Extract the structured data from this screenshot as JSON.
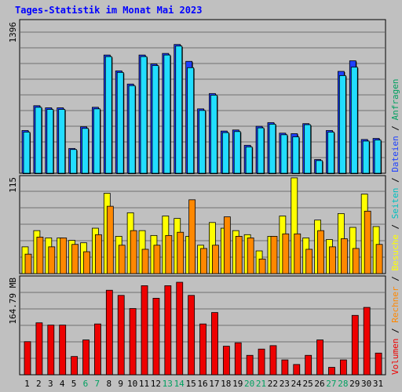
{
  "title": "Tages-Statistik im Monat Mai 2023",
  "colors": {
    "background": "#c0c0c0",
    "title": "#0000ff",
    "grid": "#707070",
    "anfragen": "#1e40ff",
    "dateien": "#22ddff",
    "seiten": "#00c0c0",
    "besuche": "#ffff00",
    "rechner": "#ff8800",
    "volumen": "#ee0000",
    "weekend": "#00a060",
    "label_dark": "#000000"
  },
  "right_legend": [
    "Volumen",
    "Rechner",
    "Besuche",
    "Seiten",
    "Dateien",
    "Anfragen"
  ],
  "right_legend_sep": "/",
  "chart_data": [
    {
      "type": "bar",
      "title": "Tages-Statistik im Monat Mai 2023",
      "ylabel": "1396",
      "ylim": [
        0,
        1396
      ],
      "grid": true,
      "categories": [
        "1",
        "2",
        "3",
        "4",
        "5",
        "6",
        "7",
        "8",
        "9",
        "10",
        "11",
        "12",
        "13",
        "14",
        "15",
        "16",
        "17",
        "18",
        "19",
        "20",
        "21",
        "22",
        "23",
        "24",
        "25",
        "26",
        "27",
        "28",
        "29",
        "30",
        "31"
      ],
      "weekend_days": [
        "6",
        "7",
        "13",
        "14",
        "20",
        "21",
        "27",
        "28"
      ],
      "series": [
        {
          "name": "Anfragen",
          "values": [
            405,
            640,
            620,
            620,
            235,
            440,
            625,
            1120,
            970,
            845,
            1120,
            1035,
            1135,
            1220,
            1060,
            610,
            755,
            400,
            410,
            265,
            445,
            480,
            380,
            375,
            470,
            130,
            405,
            965,
            1065,
            320,
            330
          ]
        },
        {
          "name": "Dateien",
          "values": [
            390,
            625,
            605,
            605,
            225,
            425,
            610,
            1105,
            955,
            830,
            1105,
            1020,
            1120,
            1205,
            1000,
            595,
            740,
            385,
            395,
            250,
            430,
            465,
            365,
            345,
            460,
            120,
            390,
            925,
            1005,
            305,
            315
          ]
        }
      ]
    },
    {
      "type": "bar",
      "ylabel": "115",
      "ylim": [
        0,
        115
      ],
      "grid": true,
      "series": [
        {
          "name": "Besuche",
          "values": [
            33,
            53,
            44,
            44,
            41,
            38,
            56,
            99,
            46,
            75,
            53,
            47,
            71,
            68,
            46,
            35,
            63,
            56,
            53,
            48,
            28,
            46,
            71,
            118,
            44,
            66,
            42,
            74,
            57,
            98,
            58
          ]
        },
        {
          "name": "Rechner",
          "values": [
            24,
            45,
            33,
            44,
            36,
            27,
            48,
            83,
            35,
            53,
            30,
            35,
            47,
            51,
            91,
            31,
            35,
            70,
            46,
            44,
            18,
            46,
            49,
            49,
            30,
            53,
            33,
            43,
            31,
            77,
            36
          ]
        }
      ]
    },
    {
      "type": "bar",
      "ylabel": "164.79 MB",
      "ylim": [
        0,
        164.79
      ],
      "grid": true,
      "series": [
        {
          "name": "Volumen",
          "values": [
            58,
            91,
            87,
            87,
            32,
            61,
            89,
            148,
            139,
            116,
            156,
            134,
            156,
            162,
            139,
            89,
            109,
            50,
            56,
            34,
            45,
            51,
            26,
            18,
            34,
            61,
            13,
            26,
            104,
            118,
            38
          ]
        }
      ]
    }
  ]
}
